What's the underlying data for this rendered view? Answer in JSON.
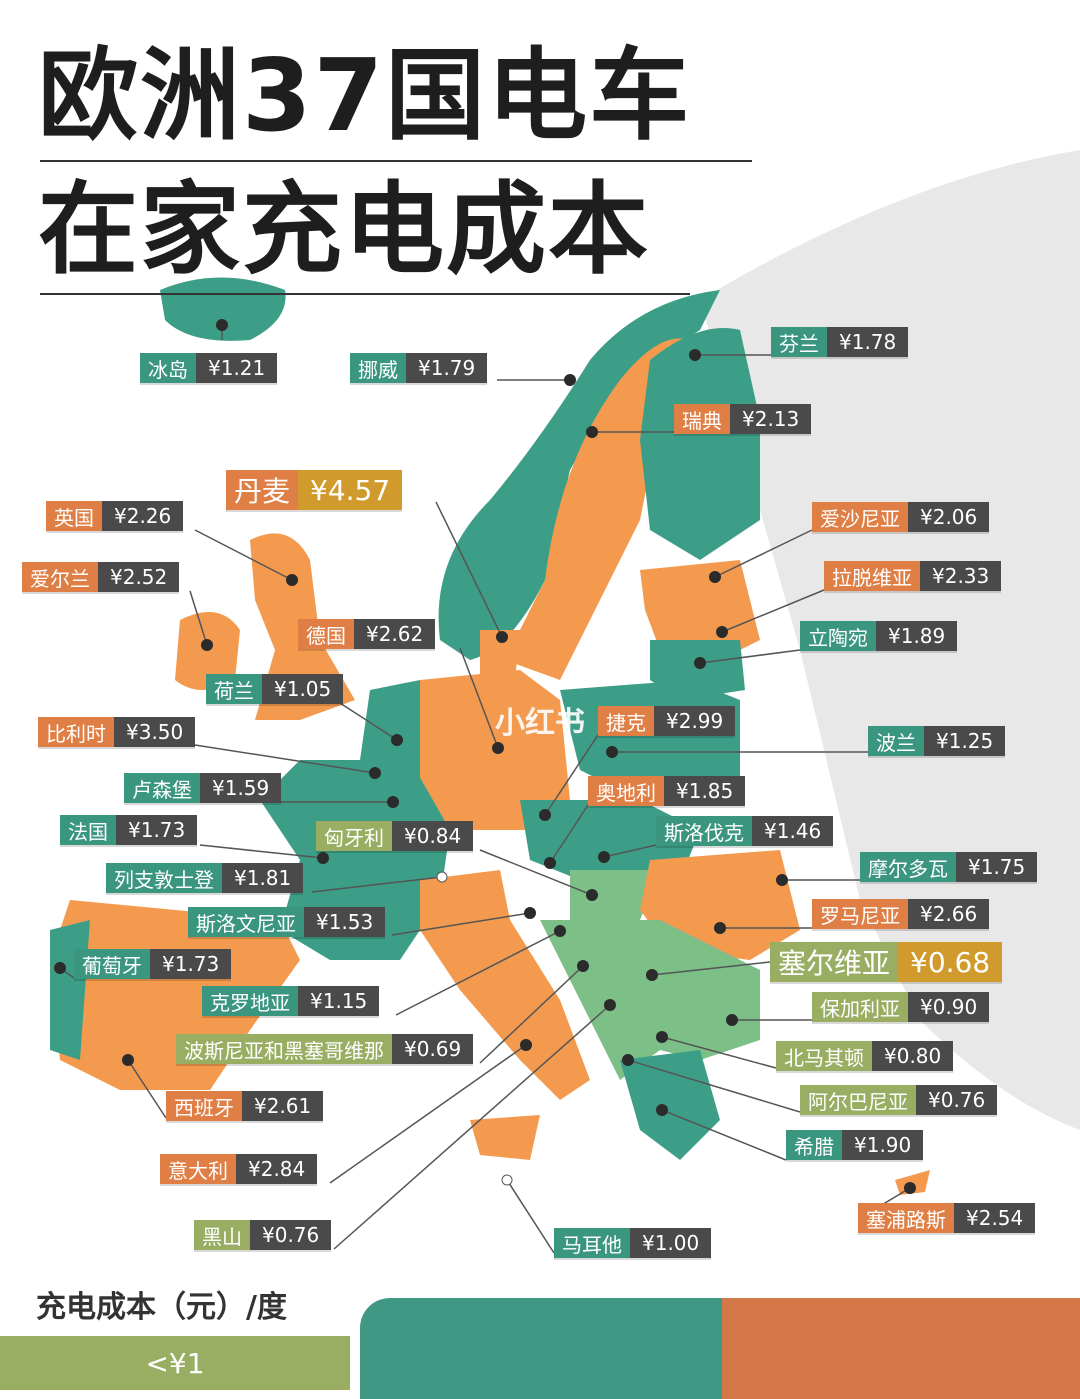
{
  "title": {
    "line1": "欧洲37国电车",
    "line2": "在家充电成本"
  },
  "colors": {
    "teal": "#3b9680",
    "orange": "#e07f45",
    "olive": "#9aae63",
    "value_bg": "#4a4a4a",
    "highlight": "#d19a2c",
    "balkan_green": "#7cbf87"
  },
  "countries": [
    {
      "name": "冰岛",
      "value": "¥1.21",
      "cat": "teal"
    },
    {
      "name": "挪威",
      "value": "¥1.79",
      "cat": "teal"
    },
    {
      "name": "芬兰",
      "value": "¥1.78",
      "cat": "teal"
    },
    {
      "name": "瑞典",
      "value": "¥2.13",
      "cat": "orange"
    },
    {
      "name": "丹麦",
      "value": "¥4.57",
      "cat": "orange",
      "highlight": "max"
    },
    {
      "name": "英国",
      "value": "¥2.26",
      "cat": "orange"
    },
    {
      "name": "爱尔兰",
      "value": "¥2.52",
      "cat": "orange"
    },
    {
      "name": "爱沙尼亚",
      "value": "¥2.06",
      "cat": "orange"
    },
    {
      "name": "拉脱维亚",
      "value": "¥2.33",
      "cat": "orange"
    },
    {
      "name": "立陶宛",
      "value": "¥1.89",
      "cat": "teal"
    },
    {
      "name": "德国",
      "value": "¥2.62",
      "cat": "orange"
    },
    {
      "name": "荷兰",
      "value": "¥1.05",
      "cat": "teal"
    },
    {
      "name": "比利时",
      "value": "¥3.50",
      "cat": "orange"
    },
    {
      "name": "捷克",
      "value": "¥2.99",
      "cat": "orange"
    },
    {
      "name": "波兰",
      "value": "¥1.25",
      "cat": "teal"
    },
    {
      "name": "卢森堡",
      "value": "¥1.59",
      "cat": "teal"
    },
    {
      "name": "奥地利",
      "value": "¥1.85",
      "cat": "orange"
    },
    {
      "name": "法国",
      "value": "¥1.73",
      "cat": "teal"
    },
    {
      "name": "匈牙利",
      "value": "¥0.84",
      "cat": "olive"
    },
    {
      "name": "斯洛伐克",
      "value": "¥1.46",
      "cat": "teal"
    },
    {
      "name": "列支敦士登",
      "value": "¥1.81",
      "cat": "teal"
    },
    {
      "name": "摩尔多瓦",
      "value": "¥1.75",
      "cat": "teal"
    },
    {
      "name": "斯洛文尼亚",
      "value": "¥1.53",
      "cat": "teal"
    },
    {
      "name": "罗马尼亚",
      "value": "¥2.66",
      "cat": "orange"
    },
    {
      "name": "塞尔维亚",
      "value": "¥0.68",
      "cat": "olive",
      "highlight": "min"
    },
    {
      "name": "葡萄牙",
      "value": "¥1.73",
      "cat": "teal"
    },
    {
      "name": "克罗地亚",
      "value": "¥1.15",
      "cat": "teal"
    },
    {
      "name": "保加利亚",
      "value": "¥0.90",
      "cat": "olive"
    },
    {
      "name": "波斯尼亚和黑塞哥维那",
      "value": "¥0.69",
      "cat": "olive"
    },
    {
      "name": "北马其顿",
      "value": "¥0.80",
      "cat": "olive"
    },
    {
      "name": "西班牙",
      "value": "¥2.61",
      "cat": "orange"
    },
    {
      "name": "阿尔巴尼亚",
      "value": "¥0.76",
      "cat": "olive"
    },
    {
      "name": "希腊",
      "value": "¥1.90",
      "cat": "teal"
    },
    {
      "name": "意大利",
      "value": "¥2.84",
      "cat": "orange"
    },
    {
      "name": "塞浦路斯",
      "value": "¥2.54",
      "cat": "orange"
    },
    {
      "name": "黑山",
      "value": "¥0.76",
      "cat": "olive"
    },
    {
      "name": "马耳他",
      "value": "¥1.00",
      "cat": "teal"
    }
  ],
  "legend": {
    "title": "充电成本（元）/度",
    "items": [
      {
        "label": "<¥1",
        "color": "#9aae63"
      },
      {
        "label": "",
        "color": "#3f9884"
      },
      {
        "label": "",
        "color": "#d4784a"
      }
    ]
  },
  "watermark": "小红书"
}
